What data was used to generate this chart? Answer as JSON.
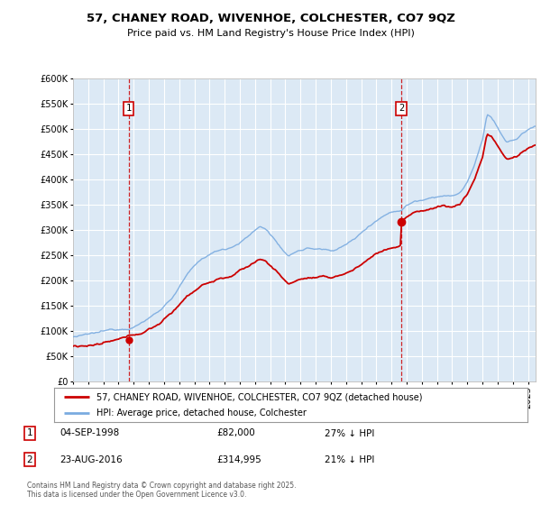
{
  "title": "57, CHANEY ROAD, WIVENHOE, COLCHESTER, CO7 9QZ",
  "subtitle": "Price paid vs. HM Land Registry's House Price Index (HPI)",
  "background_color": "#ffffff",
  "plot_bg": "#dce9f5",
  "grid_color": "#ffffff",
  "hpi_color": "#7aabe0",
  "sale_color": "#cc0000",
  "marker1_date_num": 1998.67,
  "marker1_value": 82000,
  "marker1_label": "1",
  "marker2_date_num": 2016.64,
  "marker2_value": 314995,
  "marker2_label": "2",
  "legend_entries": [
    "57, CHANEY ROAD, WIVENHOE, COLCHESTER, CO7 9QZ (detached house)",
    "HPI: Average price, detached house, Colchester"
  ],
  "footer_line1": "Contains HM Land Registry data © Crown copyright and database right 2025.",
  "footer_line2": "This data is licensed under the Open Government Licence v3.0.",
  "annotation1": [
    "1",
    "04-SEP-1998",
    "£82,000",
    "27% ↓ HPI"
  ],
  "annotation2": [
    "2",
    "23-AUG-2016",
    "£314,995",
    "21% ↓ HPI"
  ],
  "ylim": [
    0,
    600000
  ],
  "xlim": [
    1995.0,
    2025.5
  ],
  "yticks": [
    0,
    50000,
    100000,
    150000,
    200000,
    250000,
    300000,
    350000,
    400000,
    450000,
    500000,
    550000,
    600000
  ]
}
